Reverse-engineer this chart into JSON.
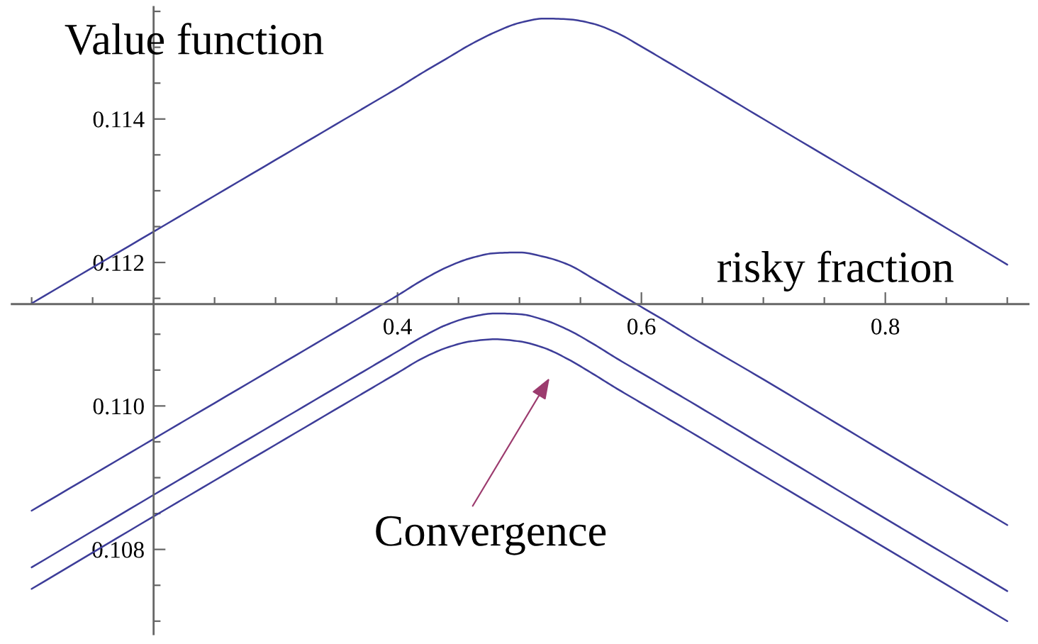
{
  "chart_data": {
    "type": "line",
    "xlabel": "risky fraction",
    "ylabel": "Value function",
    "annotations": [
      "Convergence"
    ],
    "x": [
      0.1,
      0.2,
      0.3,
      0.38,
      0.4,
      0.42,
      0.44,
      0.46,
      0.48,
      0.5,
      0.52,
      0.54,
      0.56,
      0.58,
      0.6,
      0.62,
      0.64,
      0.7,
      0.8,
      0.9
    ],
    "series": [
      {
        "color": "#3d3d99",
        "values": [
          0.11143,
          0.11243,
          0.11343,
          0.11423,
          0.11443,
          0.11464,
          0.11484,
          0.11504,
          0.11521,
          0.11534,
          0.1154,
          0.11539,
          0.11533,
          0.1152,
          0.11501,
          0.11481,
          0.11461,
          0.114,
          0.11299,
          0.11197
        ]
      },
      {
        "color": "#3d3d99",
        "values": [
          0.10854,
          0.10954,
          0.11054,
          0.11134,
          0.11154,
          0.11175,
          0.11193,
          0.11206,
          0.11213,
          0.11214,
          0.11208,
          0.11197,
          0.11178,
          0.11158,
          0.11138,
          0.11118,
          0.11097,
          0.11037,
          0.10935,
          0.10834
        ]
      },
      {
        "color": "#3d3d99",
        "values": [
          0.10775,
          0.10876,
          0.10976,
          0.11056,
          0.11076,
          0.11096,
          0.11113,
          0.11124,
          0.11129,
          0.11128,
          0.1112,
          0.11106,
          0.11087,
          0.11066,
          0.11046,
          0.11026,
          0.11006,
          0.10945,
          0.10843,
          0.10742
        ]
      },
      {
        "color": "#3d3d99",
        "values": [
          0.10745,
          0.10846,
          0.10946,
          0.11026,
          0.11046,
          0.11066,
          0.11081,
          0.1109,
          0.11093,
          0.1109,
          0.11081,
          0.11065,
          0.11045,
          0.11024,
          0.11004,
          0.10984,
          0.10964,
          0.10903,
          0.10802,
          0.107
        ]
      }
    ],
    "xlim": [
      0.0837,
      0.9174
    ],
    "ylim": [
      0.10682,
      0.11556
    ],
    "xticks": [
      0.4,
      0.6,
      0.8
    ],
    "yticks": [
      0.108,
      {
        "value": 0.11,
        "label": "0.110"
      },
      0.112,
      0.114
    ]
  }
}
